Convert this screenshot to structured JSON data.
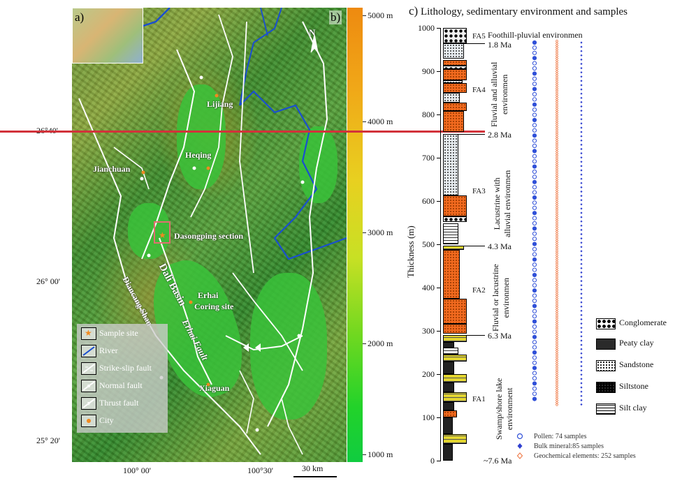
{
  "map": {
    "panel_a_label": "a)",
    "panel_b_label": "b)",
    "north_label": "N",
    "lat_labels": [
      "26°40'",
      "26° 00'",
      "25° 20'"
    ],
    "lon_labels": [
      "100° 00'",
      "100°30'"
    ],
    "scale_bar": "30 km",
    "places": {
      "lijiang": "Lijiang",
      "heqing": "Heqing",
      "jianchuan": "Jianchuan",
      "dasongping": "Dasongping section",
      "erhai_coring": "Erhai",
      "coring_site": "Coring site",
      "xiaguan": "Xiaguan",
      "dali_basin": "Dali Basin",
      "diancang_shan": "Diancang  Shan",
      "erhai_fault": "Erhai    Fault"
    },
    "legend": [
      "Sample site",
      "River",
      "Strike-slip fault",
      "Normal fault",
      "Thrust fault",
      "City"
    ],
    "colors": {
      "river": "#1a4fd0",
      "fault": "#ffffff",
      "sample": "#f08a20",
      "box": "#e07070"
    }
  },
  "colorbar": {
    "labels": [
      "5000 m",
      "4000 m",
      "3000 m",
      "2000 m",
      "1000 m"
    ],
    "colors": {
      "high": "#ee8a10",
      "mid": "#e8d020",
      "low": "#10cc40"
    }
  },
  "column": {
    "title_letter": "c)",
    "title": " Lithology, sedimentary environment and samples",
    "y_axis_label": "Thickness (m)",
    "thickness_ticks": [
      "1000",
      "900",
      "800",
      "700",
      "600",
      "500",
      "400",
      "300",
      "200",
      "100",
      "0"
    ],
    "ages": [
      "1.8 Ma",
      "2.8 Ma",
      "4.3 Ma",
      "6.3 Ma",
      "~7.6 Ma"
    ],
    "facies": [
      "FA5",
      "FA4",
      "FA3",
      "FA2",
      "FA1"
    ],
    "environments": {
      "top": "Foothill-pluvial  environmen",
      "fluvial_alluvial": [
        "Fluvial and alluvial",
        "environmen"
      ],
      "lacustrine_alluvial": [
        "Lacustrine with",
        "alluvial environmen"
      ],
      "fluvial_lacustrine": [
        "Fluvial or lacustrine",
        "environmen"
      ],
      "swamp": [
        "Swamp/shore lake",
        "environment"
      ]
    },
    "sample_legend": [
      "Pollen: 74 samples",
      "Bulk mineral:85 samples",
      "Geochemical elements: 252 samples"
    ],
    "lithology_legend": [
      "Conglomerate",
      "Peaty clay",
      "Sandstone",
      "Siltstone",
      "Silt clay"
    ],
    "sample_colors": {
      "pollen": "#3050d8",
      "bulk_mineral": "#3040d0",
      "geochem": "#f08050"
    }
  }
}
